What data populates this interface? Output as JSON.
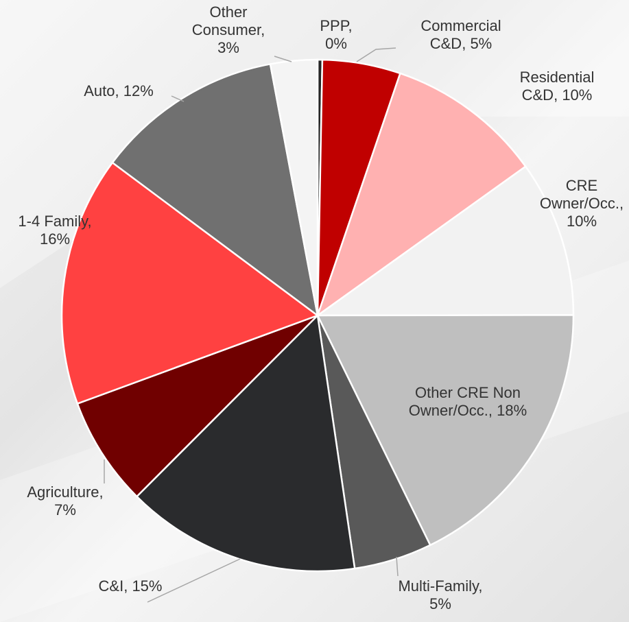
{
  "chart_data": {
    "type": "pie",
    "categories": [
      "PPP",
      "Commercial C&D",
      "Residential C&D",
      "CRE Owner/Occ.",
      "Other CRE Non Owner/Occ.",
      "Multi-Family",
      "C&I",
      "Agriculture",
      "1-4 Family",
      "Auto",
      "Other Consumer"
    ],
    "values": [
      0.3,
      5,
      10,
      10,
      18,
      5,
      15,
      7,
      16,
      12,
      3
    ],
    "value_labels": [
      "0%",
      "5%",
      "10%",
      "10%",
      "18%",
      "5%",
      "15%",
      "7%",
      "16%",
      "12%",
      "3%"
    ],
    "label_separator": ", ",
    "colors": [
      "#262626",
      "#c00000",
      "#ffb1b1",
      "#f2f2f2",
      "#bfbfbf",
      "#595959",
      "#2a2b2d",
      "#700000",
      "#ff4141",
      "#707070",
      "#f4f4f4"
    ]
  }
}
